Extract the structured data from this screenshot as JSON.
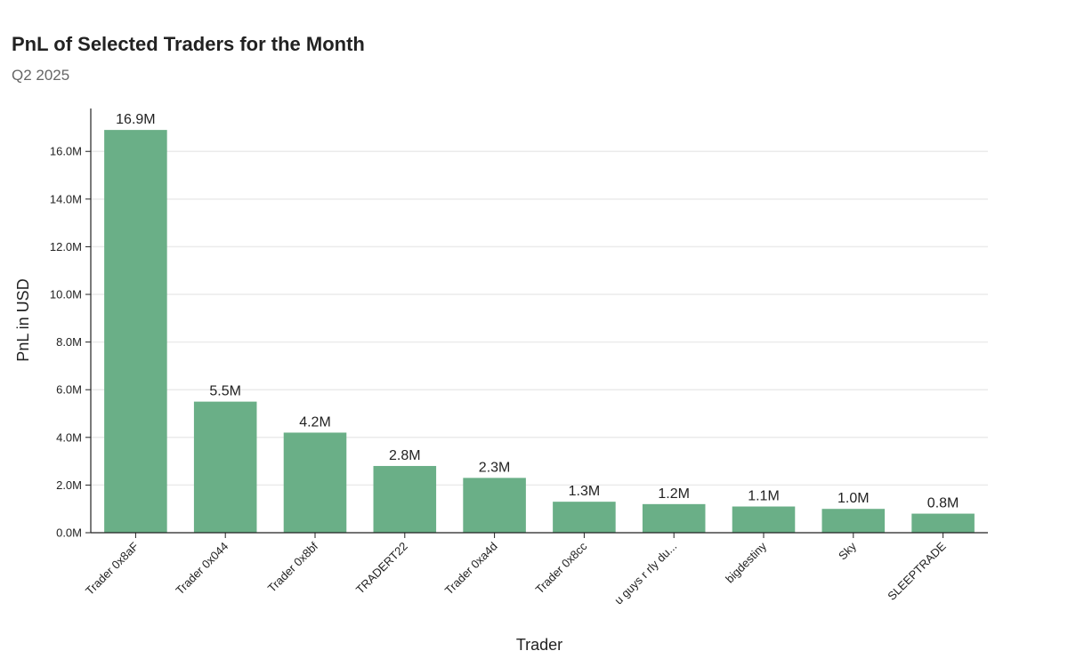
{
  "chart_data": {
    "type": "bar",
    "title": "PnL of Selected Traders for the Month",
    "subtitle": "Q2 2025",
    "xlabel": "Trader",
    "ylabel": "PnL in USD",
    "categories": [
      "Trader 0x8aF",
      "Trader 0x044",
      "Trader 0x8bf",
      "TRADERT22",
      "Trader 0xa4d",
      "Trader 0x8cc",
      "u guys r rly du...",
      "bigdestiny",
      "Sky",
      "SLEEPTRADE"
    ],
    "values": [
      16.9,
      5.5,
      4.2,
      2.8,
      2.3,
      1.3,
      1.2,
      1.1,
      1.0,
      0.8
    ],
    "value_labels": [
      "16.9M",
      "5.5M",
      "4.2M",
      "2.8M",
      "2.3M",
      "1.3M",
      "1.2M",
      "1.1M",
      "1.0M",
      "0.8M"
    ],
    "value_unit": "M",
    "yticks": [
      0,
      2,
      4,
      6,
      8,
      10,
      12,
      14,
      16
    ],
    "ytick_labels": [
      "0.0M",
      "2.0M",
      "4.0M",
      "6.0M",
      "8.0M",
      "10.0M",
      "12.0M",
      "14.0M",
      "16.0M"
    ],
    "ylim": [
      0,
      17.8
    ],
    "grid": true,
    "bar_color": "#6aaf87",
    "grid_color": "#ebebeb",
    "axis_color": "#222222"
  }
}
